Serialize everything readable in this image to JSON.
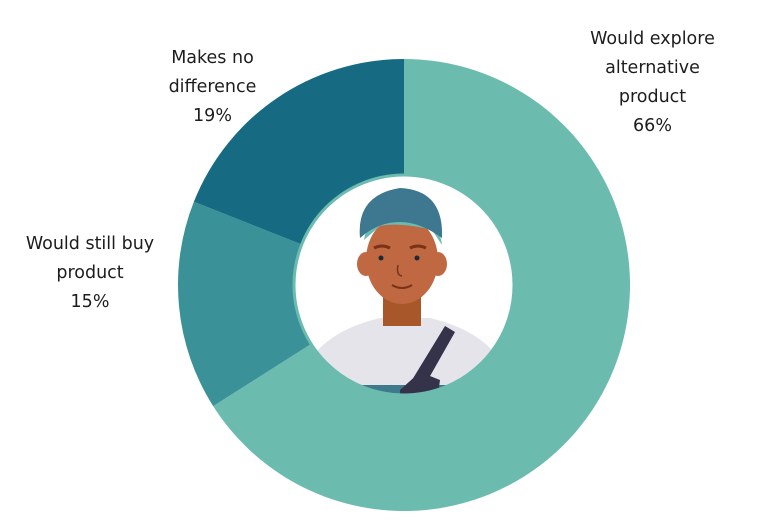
{
  "chart_data": {
    "type": "pie",
    "donut": true,
    "slices": [
      {
        "label": "Would explore alternative product",
        "value": 66,
        "value_label": "66%",
        "color": "#6bbbaf"
      },
      {
        "label": "Would still buy product",
        "value": 15,
        "value_label": "15%",
        "color": "#3a9197"
      },
      {
        "label": "Makes no difference",
        "value": 19,
        "value_label": "19%",
        "color": "#166a82"
      }
    ],
    "center_image": "person-avatar-illustration"
  }
}
